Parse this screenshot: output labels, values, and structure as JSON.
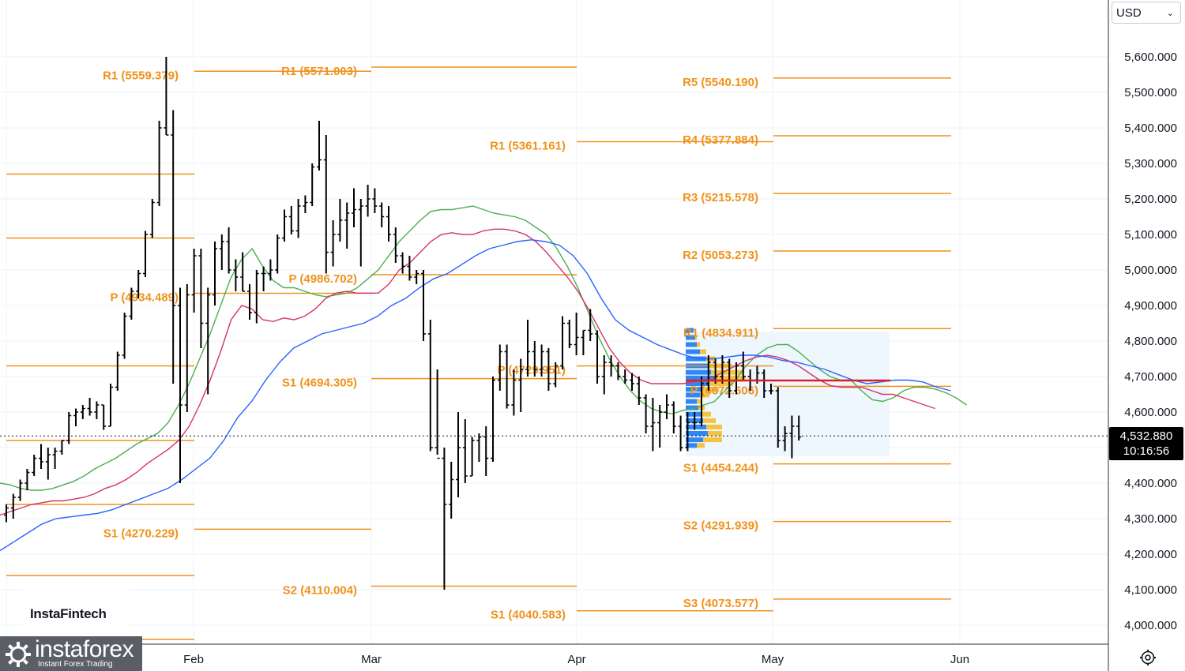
{
  "currency": {
    "selected": "USD"
  },
  "last_price": {
    "value": "4,532.880",
    "countdown": "10:16:56",
    "price": 4532.88
  },
  "watermark": {
    "brand": "InstaFintech",
    "logo_name": "instaforex",
    "logo_tagline": "Instant Forex Trading"
  },
  "icons": {
    "settings": "settings-icon",
    "dropdown": "chevron-down-icon"
  },
  "colors": {
    "pivot": "#f0921a",
    "candle": "#000000",
    "ma_fast": "#4caf50",
    "ma_mid": "#d6336c",
    "ma_slow": "#2962ff",
    "vp_up": "#2f86f5",
    "vp_down": "#f5c342",
    "poc": "#e02020"
  },
  "chart_data": {
    "type": "ohlc",
    "price_axis": {
      "range": [
        3950,
        5680
      ],
      "ticks": [
        4000,
        4100,
        4200,
        4300,
        4400,
        4500,
        4600,
        4700,
        4800,
        4900,
        5000,
        5100,
        5200,
        5300,
        5400,
        5500,
        5600
      ],
      "tick_labels": [
        "4,000.000",
        "4,100.000",
        "4,200.000",
        "4,300.000",
        "4,400.000",
        "",
        "4,600.000",
        "4,700.000",
        "4,800.000",
        "4,900.000",
        "5,000.000",
        "5,100.000",
        "5,200.000",
        "5,300.000",
        "5,400.000",
        "5,500.000",
        "5,600.000"
      ]
    },
    "time_axis": {
      "labels": [
        "Feb",
        "Mar",
        "Apr",
        "May",
        "Jun"
      ]
    },
    "pivot_levels": [
      {
        "period": "Jan",
        "label": "R1 (5559.379)",
        "price": 5559.379
      },
      {
        "period": "Jan",
        "label": "P (4934.489)",
        "price": 4934.489
      },
      {
        "period": "Jan",
        "label": "S1 (4270.229)",
        "price": 4270.229
      },
      {
        "period": "Feb",
        "label": "R1 (5571.003)",
        "price": 5571.003
      },
      {
        "period": "Feb",
        "label": "P (4986.702)",
        "price": 4986.702
      },
      {
        "period": "Feb",
        "label": "S1 (4694.305)",
        "price": 4694.305
      },
      {
        "period": "Feb",
        "label": "S2 (4110.004)",
        "price": 4110.004
      },
      {
        "period": "Mar",
        "label": "R1 (5361.161)",
        "price": 5361.161
      },
      {
        "period": "Mar",
        "label": "P (4729.951)",
        "price": 4729.951
      },
      {
        "period": "Mar",
        "label": "S1 (4040.583)",
        "price": 4040.583
      },
      {
        "period": "Apr",
        "label": "R5 (5540.190)",
        "price": 5540.19
      },
      {
        "period": "Apr",
        "label": "R4 (5377.884)",
        "price": 5377.884
      },
      {
        "period": "Apr",
        "label": "R3 (5215.578)",
        "price": 5215.578
      },
      {
        "period": "Apr",
        "label": "R2 (5053.273)",
        "price": 5053.273
      },
      {
        "period": "Apr",
        "label": "R1 (4834.911)",
        "price": 4834.911
      },
      {
        "period": "Apr",
        "label": "P (4672.606)",
        "price": 4672.606
      },
      {
        "period": "Apr",
        "label": "S1 (4454.244)",
        "price": 4454.244
      },
      {
        "period": "Apr",
        "label": "S2 (4291.939)",
        "price": 4291.939
      },
      {
        "period": "Apr",
        "label": "S3 (4073.577)",
        "price": 4073.577
      }
    ],
    "unlabeled_levels": [
      {
        "period": "Dec",
        "prices": [
          5270,
          5090,
          4730,
          4520,
          4340,
          4140,
          3960
        ]
      }
    ],
    "ohlc": [
      [
        4310,
        4340,
        4290,
        4330
      ],
      [
        4330,
        4370,
        4300,
        4360
      ],
      [
        4360,
        4410,
        4350,
        4400
      ],
      [
        4400,
        4440,
        4380,
        4430
      ],
      [
        4430,
        4480,
        4420,
        4470
      ],
      [
        4470,
        4510,
        4440,
        4460
      ],
      [
        4460,
        4500,
        4410,
        4480
      ],
      [
        4480,
        4500,
        4440,
        4490
      ],
      [
        4490,
        4520,
        4480,
        4520
      ],
      [
        4520,
        4600,
        4510,
        4590
      ],
      [
        4590,
        4610,
        4560,
        4600
      ],
      [
        4600,
        4620,
        4580,
        4610
      ],
      [
        4610,
        4640,
        4590,
        4600
      ],
      [
        4600,
        4630,
        4580,
        4620
      ],
      [
        4620,
        4620,
        4550,
        4560
      ],
      [
        4560,
        4680,
        4560,
        4670
      ],
      [
        4670,
        4770,
        4660,
        4760
      ],
      [
        4760,
        4880,
        4750,
        4870
      ],
      [
        4870,
        4950,
        4860,
        4940
      ],
      [
        4940,
        5000,
        4920,
        4990
      ],
      [
        4990,
        5110,
        4980,
        5100
      ],
      [
        5100,
        5200,
        5090,
        5190
      ],
      [
        5190,
        5420,
        5180,
        5400
      ],
      [
        5400,
        5600,
        5380,
        5380
      ],
      [
        5380,
        5450,
        4680,
        4900
      ],
      [
        4900,
        4950,
        4400,
        4620
      ],
      [
        4620,
        4960,
        4600,
        4930
      ],
      [
        4930,
        5060,
        4880,
        5040
      ],
      [
        5040,
        5060,
        4780,
        4850
      ],
      [
        4850,
        4950,
        4650,
        4930
      ],
      [
        4930,
        5080,
        4900,
        5060
      ],
      [
        5060,
        5100,
        5000,
        5080
      ],
      [
        5080,
        5120,
        4990,
        5000
      ],
      [
        5000,
        5030,
        4940,
        4980
      ],
      [
        4980,
        5050,
        4940,
        4940
      ],
      [
        4940,
        4960,
        4860,
        4880
      ],
      [
        4880,
        5000,
        4850,
        4990
      ],
      [
        4990,
        5010,
        4940,
        4990
      ],
      [
        4990,
        5030,
        4970,
        5000
      ],
      [
        5000,
        5100,
        4990,
        5090
      ],
      [
        5090,
        5170,
        5080,
        5150
      ],
      [
        5150,
        5180,
        5100,
        5110
      ],
      [
        5110,
        5200,
        5090,
        5180
      ],
      [
        5180,
        5210,
        5160,
        5190
      ],
      [
        5190,
        5300,
        5180,
        5290
      ],
      [
        5290,
        5420,
        5280,
        5310
      ],
      [
        5310,
        5380,
        4990,
        5050
      ],
      [
        5050,
        5140,
        5010,
        5100
      ],
      [
        5100,
        5200,
        5080,
        5140
      ],
      [
        5140,
        5190,
        5060,
        5160
      ],
      [
        5160,
        5230,
        5120,
        5170
      ],
      [
        5170,
        5200,
        5010,
        5180
      ],
      [
        5180,
        5240,
        5150,
        5200
      ],
      [
        5200,
        5230,
        5160,
        5180
      ],
      [
        5180,
        5190,
        5120,
        5150
      ],
      [
        5150,
        5180,
        5080,
        5100
      ],
      [
        5100,
        5120,
        5020,
        5040
      ],
      [
        5040,
        5050,
        4990,
        5010
      ],
      [
        5010,
        5040,
        4970,
        4980
      ],
      [
        4980,
        5000,
        4960,
        4990
      ],
      [
        4990,
        5000,
        4800,
        4820
      ],
      [
        4820,
        4860,
        4490,
        4500
      ],
      [
        4500,
        4720,
        4480,
        4470
      ],
      [
        4470,
        4500,
        4100,
        4340
      ],
      [
        4340,
        4460,
        4300,
        4410
      ],
      [
        4410,
        4600,
        4360,
        4500
      ],
      [
        4500,
        4580,
        4400,
        4420
      ],
      [
        4420,
        4530,
        4420,
        4520
      ],
      [
        4520,
        4540,
        4460,
        4530
      ],
      [
        4530,
        4560,
        4420,
        4470
      ],
      [
        4470,
        4700,
        4460,
        4690
      ],
      [
        4690,
        4790,
        4660,
        4770
      ],
      [
        4770,
        4790,
        4610,
        4620
      ],
      [
        4620,
        4720,
        4590,
        4690
      ],
      [
        4690,
        4750,
        4600,
        4720
      ],
      [
        4720,
        4860,
        4700,
        4770
      ],
      [
        4770,
        4800,
        4700,
        4720
      ],
      [
        4720,
        4790,
        4700,
        4770
      ],
      [
        4770,
        4780,
        4660,
        4680
      ],
      [
        4680,
        4740,
        4670,
        4730
      ],
      [
        4730,
        4870,
        4720,
        4850
      ],
      [
        4850,
        4860,
        4780,
        4790
      ],
      [
        4790,
        4880,
        4760,
        4810
      ],
      [
        4810,
        4830,
        4760,
        4830
      ],
      [
        4830,
        4890,
        4800,
        4820
      ],
      [
        4820,
        4830,
        4680,
        4700
      ],
      [
        4700,
        4760,
        4650,
        4740
      ],
      [
        4740,
        4760,
        4700,
        4730
      ],
      [
        4730,
        4740,
        4690,
        4700
      ],
      [
        4700,
        4720,
        4680,
        4690
      ],
      [
        4690,
        4710,
        4660,
        4680
      ],
      [
        4680,
        4700,
        4620,
        4640
      ],
      [
        4640,
        4650,
        4540,
        4560
      ],
      [
        4560,
        4640,
        4490,
        4570
      ],
      [
        4570,
        4620,
        4500,
        4600
      ],
      [
        4600,
        4650,
        4580,
        4620
      ],
      [
        4620,
        4630,
        4540,
        4560
      ],
      [
        4560,
        4590,
        4490,
        4500
      ],
      [
        4500,
        4600,
        4490,
        4570
      ],
      [
        4570,
        4600,
        4550,
        4570
      ],
      [
        4570,
        4700,
        4560,
        4680
      ],
      [
        4680,
        4760,
        4660,
        4740
      ],
      [
        4740,
        4750,
        4680,
        4700
      ],
      [
        4700,
        4760,
        4680,
        4740
      ],
      [
        4740,
        4750,
        4640,
        4660
      ],
      [
        4660,
        4740,
        4650,
        4730
      ],
      [
        4730,
        4770,
        4690,
        4700
      ],
      [
        4700,
        4720,
        4660,
        4690
      ],
      [
        4690,
        4730,
        4680,
        4710
      ],
      [
        4710,
        4720,
        4640,
        4660
      ],
      [
        4660,
        4680,
        4650,
        4660
      ],
      [
        4660,
        4670,
        4500,
        4520
      ],
      [
        4520,
        4560,
        4490,
        4540
      ],
      [
        4540,
        4590,
        4470,
        4560
      ],
      [
        4560,
        4590,
        4520,
        4530
      ]
    ],
    "moving_averages": [
      {
        "color": "green",
        "values": [
          4400,
          4395,
          4385,
          4380,
          4380,
          4385,
          4395,
          4405,
          4420,
          4440,
          4455,
          4470,
          4490,
          4510,
          4525,
          4540,
          4570,
          4620,
          4680,
          4750,
          4820,
          4900,
          4980,
          5030,
          5060,
          5010,
          4970,
          4950,
          4950,
          4940,
          4930,
          4925,
          4930,
          4935,
          4950,
          4975,
          5000,
          5040,
          5080,
          5110,
          5140,
          5165,
          5170,
          5170,
          5175,
          5180,
          5170,
          5160,
          5155,
          5150,
          5140,
          5120,
          5100,
          5060,
          5010,
          4950,
          4880,
          4810,
          4750,
          4700,
          4660,
          4630,
          4610,
          4600,
          4595,
          4605,
          4610,
          4620,
          4630,
          4660,
          4690,
          4730,
          4760,
          4780,
          4790,
          4790,
          4770,
          4745,
          4720,
          4700,
          4690,
          4690,
          4660,
          4635,
          4630,
          4640,
          4660,
          4670,
          4670,
          4665,
          4655,
          4640,
          4620
        ]
      },
      {
        "color": "red",
        "values": [
          4310,
          4320,
          4330,
          4340,
          4345,
          4350,
          4350,
          4355,
          4360,
          4370,
          4385,
          4395,
          4410,
          4430,
          4455,
          4475,
          4495,
          4520,
          4560,
          4620,
          4690,
          4770,
          4860,
          4900,
          4890,
          4860,
          4855,
          4865,
          4860,
          4870,
          4890,
          4920,
          4935,
          4940,
          4935,
          4935,
          4935,
          4960,
          5000,
          5020,
          5050,
          5080,
          5100,
          5105,
          5100,
          5100,
          5110,
          5115,
          5115,
          5110,
          5100,
          5080,
          5050,
          5015,
          4980,
          4940,
          4890,
          4835,
          4780,
          4740,
          4710,
          4690,
          4680,
          4680,
          4680,
          4680,
          4685,
          4690,
          4700,
          4715,
          4730,
          4745,
          4755,
          4760,
          4755,
          4745,
          4730,
          4710,
          4690,
          4675,
          4670,
          4670,
          4670,
          4660,
          4650,
          4650,
          4640,
          4630,
          4620,
          4610
        ]
      },
      {
        "color": "blue",
        "values": [
          4210,
          4235,
          4260,
          4285,
          4300,
          4305,
          4310,
          4315,
          4325,
          4340,
          4355,
          4370,
          4385,
          4410,
          4440,
          4470,
          4520,
          4585,
          4630,
          4690,
          4740,
          4780,
          4800,
          4820,
          4830,
          4840,
          4850,
          4870,
          4900,
          4920,
          4950,
          4975,
          4990,
          5015,
          5040,
          5060,
          5070,
          5080,
          5085,
          5080,
          5070,
          5040,
          4990,
          4920,
          4860,
          4830,
          4810,
          4790,
          4775,
          4760,
          4750,
          4750,
          4755,
          4760,
          4760,
          4755,
          4745,
          4740,
          4730,
          4720,
          4705,
          4690,
          4680,
          4685,
          4690,
          4690,
          4685,
          4670,
          4660
        ]
      }
    ],
    "volume_profile": {
      "price_range": [
        4490,
        4830
      ],
      "poc_price": 4688
    }
  }
}
